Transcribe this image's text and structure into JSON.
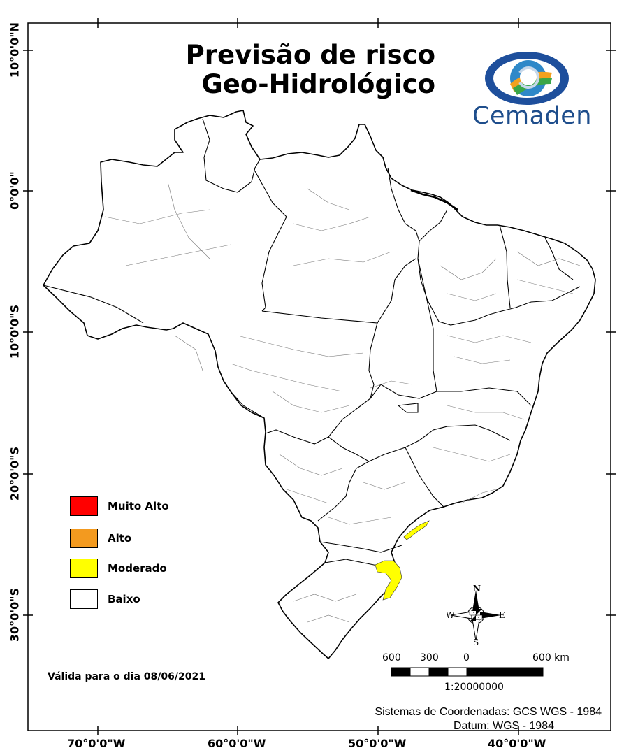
{
  "title": {
    "line1": "Previsão de risco",
    "line2": "Geo-Hidrológico"
  },
  "logo": {
    "text": "Cemaden",
    "icon": "eye-logo-icon"
  },
  "axes": {
    "longitude_labels": [
      "70°0'0\"W",
      "60°0'0\"W",
      "50°0'0\"W",
      "40°0'0\"W"
    ],
    "latitude_labels": [
      "10°0'0\"N",
      "0°0'0\"",
      "10°0'0\"S",
      "20°0'0\"S",
      "30°0'0\"S"
    ]
  },
  "legend": {
    "items": [
      {
        "label": "Muito Alto",
        "color": "#ff0000"
      },
      {
        "label": "Alto",
        "color": "#f39a1f"
      },
      {
        "label": "Moderado",
        "color": "#ffff00"
      },
      {
        "label": "Baixo",
        "color": "#ffffff"
      }
    ]
  },
  "valid_date": "Válida para o dia 08/06/2021",
  "compass": {
    "n": "N",
    "s": "S",
    "e": "E",
    "w": "W"
  },
  "scale": {
    "labels": [
      "600",
      "300",
      "0",
      "600 km"
    ],
    "ratio": "1:20000000"
  },
  "coordinates_note": {
    "system": "Sistemas de Coordenadas: GCS WGS - 1984",
    "datum": "Datum: WGS - 1984"
  },
  "risk_areas": [
    {
      "level": "Moderado",
      "color": "#ffff00"
    },
    {
      "level": "Moderado",
      "color": "#ffff00"
    }
  ]
}
